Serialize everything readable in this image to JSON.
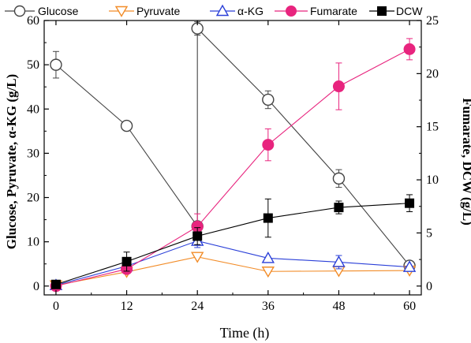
{
  "chart_data": {
    "type": "line",
    "xlabel": "Time (h)",
    "ylabel_left": "Glucose, Pyruvate, α-KG (g/L)",
    "ylabel_right": "Fumarate, DCW (g/L)",
    "xlim": [
      -2,
      62
    ],
    "ylim_left": [
      -2,
      60
    ],
    "ylim_right": [
      -0.8333,
      25
    ],
    "x_ticks": [
      0,
      12,
      24,
      36,
      48,
      60
    ],
    "x_tick_labels": [
      "0",
      "12",
      "24",
      "36",
      "48",
      "60"
    ],
    "y_left_ticks": [
      0,
      10,
      20,
      30,
      40,
      50,
      60
    ],
    "y_left_tick_labels": [
      "0",
      "10",
      "20",
      "30",
      "40",
      "50",
      "60"
    ],
    "y_right_ticks": [
      0,
      5,
      10,
      15,
      20,
      25
    ],
    "y_right_tick_labels": [
      "0",
      "5",
      "10",
      "15",
      "20",
      "25"
    ],
    "legend_position": "top",
    "series": [
      {
        "name": "Glucose",
        "axis": "left",
        "marker": "circle-open",
        "color": "#444444",
        "x": [
          0,
          12,
          24,
          24,
          36,
          48,
          60
        ],
        "y": [
          50,
          36.2,
          13.5,
          58.2,
          42.1,
          24.3,
          4.6
        ],
        "err": [
          3,
          0,
          0,
          1.5,
          2,
          2,
          0
        ]
      },
      {
        "name": "Pyruvate",
        "axis": "left",
        "marker": "triangle-down-open",
        "color": "#f28c28",
        "x": [
          0,
          12,
          24,
          36,
          48,
          60
        ],
        "y": [
          0.2,
          3.2,
          6.6,
          3.3,
          3.4,
          3.5
        ],
        "err": [
          0,
          0,
          0,
          0,
          0,
          0
        ]
      },
      {
        "name": "α-KG",
        "axis": "left",
        "marker": "triangle-up-open",
        "color": "#2a3fd8",
        "x": [
          0,
          12,
          24,
          36,
          48,
          60
        ],
        "y": [
          0.2,
          4.5,
          10.2,
          6.3,
          5.4,
          4.3
        ],
        "err": [
          0,
          0,
          1.5,
          0,
          1.5,
          0
        ]
      },
      {
        "name": "Fumarate",
        "axis": "right",
        "marker": "circle-filled",
        "color": "#e8247e",
        "x": [
          0,
          12,
          24,
          36,
          48,
          60
        ],
        "y": [
          0,
          1.6,
          5.6,
          13.3,
          18.8,
          22.3
        ],
        "err": [
          0,
          0.4,
          1.2,
          1.5,
          2.2,
          1.0
        ]
      },
      {
        "name": "DCW",
        "axis": "right",
        "marker": "square-filled",
        "color": "#000000",
        "x": [
          0,
          12,
          24,
          36,
          48,
          60
        ],
        "y": [
          0.15,
          2.3,
          4.7,
          6.4,
          7.4,
          7.8
        ],
        "err": [
          0.3,
          0.9,
          0.8,
          1.8,
          0.6,
          0.8
        ]
      }
    ]
  }
}
